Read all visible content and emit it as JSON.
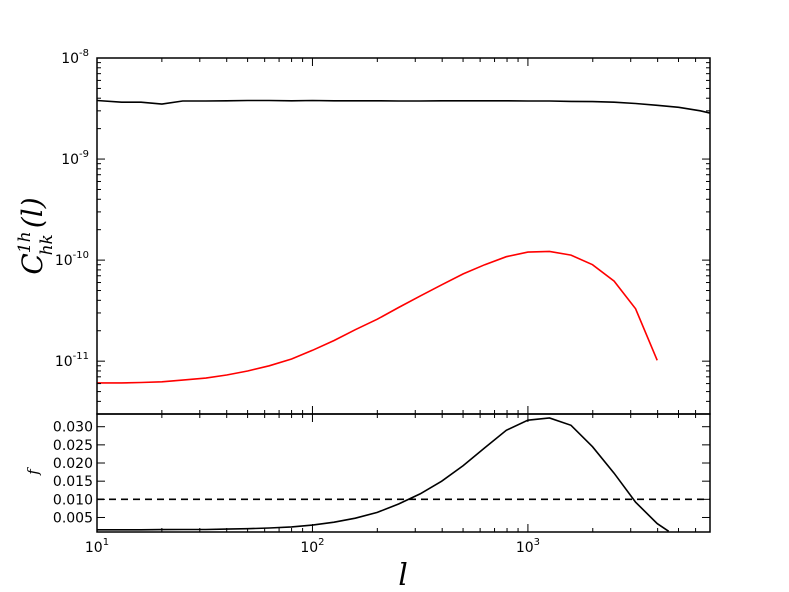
{
  "chart_data": [
    {
      "type": "line",
      "title": "",
      "xlabel": "",
      "ylabel": "C^{1h}_{hk}(l)",
      "ylabel_parts": {
        "base": "C",
        "sup": "1h",
        "sub": "hk",
        "arg": "(l)"
      },
      "xscale": "log",
      "yscale": "log",
      "xlim": [
        10,
        7000
      ],
      "ylim": [
        3e-12,
        1e-08
      ],
      "grid": false,
      "legend": "none",
      "y_ticks": [
        {
          "value": 1e-08,
          "mantissa": "10",
          "exp": "-8"
        },
        {
          "value": 1e-09,
          "mantissa": "10",
          "exp": "-9"
        },
        {
          "value": 1e-10,
          "mantissa": "10",
          "exp": "-10"
        },
        {
          "value": 1e-11,
          "mantissa": "10",
          "exp": "-11"
        }
      ],
      "series": [
        {
          "color": "#000000",
          "x": [
            10,
            13,
            16,
            20,
            25,
            32,
            40,
            50,
            63,
            80,
            100,
            126,
            158,
            200,
            251,
            316,
            398,
            501,
            631,
            794,
            1000,
            1259,
            1585,
            1995,
            2512,
            3162,
            3981,
            5012,
            6310,
            7000
          ],
          "y": [
            3.8e-09,
            3.65e-09,
            3.65e-09,
            3.5e-09,
            3.75e-09,
            3.75e-09,
            3.77e-09,
            3.8e-09,
            3.8e-09,
            3.77e-09,
            3.8e-09,
            3.77e-09,
            3.77e-09,
            3.77e-09,
            3.75e-09,
            3.75e-09,
            3.77e-09,
            3.77e-09,
            3.77e-09,
            3.77e-09,
            3.75e-09,
            3.75e-09,
            3.72e-09,
            3.7e-09,
            3.65e-09,
            3.55e-09,
            3.4e-09,
            3.25e-09,
            3e-09,
            2.85e-09
          ]
        },
        {
          "color": "#ff0000",
          "x": [
            10,
            13,
            16,
            20,
            25,
            32,
            40,
            50,
            63,
            80,
            100,
            126,
            158,
            200,
            251,
            316,
            398,
            501,
            631,
            794,
            1000,
            1259,
            1585,
            1995,
            2512,
            3162,
            3981
          ],
          "y": [
            6.1e-12,
            6.1e-12,
            6.15e-12,
            6.25e-12,
            6.5e-12,
            6.8e-12,
            7.3e-12,
            8e-12,
            9e-12,
            1.05e-11,
            1.28e-11,
            1.6e-11,
            2.05e-11,
            2.6e-11,
            3.4e-11,
            4.4e-11,
            5.7e-11,
            7.3e-11,
            9e-11,
            1.08e-10,
            1.2e-10,
            1.22e-10,
            1.12e-10,
            9e-11,
            6.2e-11,
            3.3e-11,
            1.02e-11
          ]
        }
      ]
    },
    {
      "type": "line",
      "title": "",
      "xlabel": "l",
      "ylabel": "f",
      "xscale": "log",
      "yscale": "linear",
      "xlim": [
        10,
        7000
      ],
      "ylim": [
        0.001,
        0.0335
      ],
      "grid": false,
      "legend": "none",
      "x_ticks": [
        {
          "value": 10,
          "mantissa": "10",
          "exp": "1"
        },
        {
          "value": 100,
          "mantissa": "10",
          "exp": "2"
        },
        {
          "value": 1000,
          "mantissa": "10",
          "exp": "3"
        }
      ],
      "y_ticks": [
        {
          "value": 0.005,
          "label": "0.005"
        },
        {
          "value": 0.01,
          "label": "0.010"
        },
        {
          "value": 0.015,
          "label": "0.015"
        },
        {
          "value": 0.02,
          "label": "0.020"
        },
        {
          "value": 0.025,
          "label": "0.025"
        },
        {
          "value": 0.03,
          "label": "0.030"
        }
      ],
      "series": [
        {
          "color": "#000000",
          "style": "solid",
          "x": [
            10,
            13,
            16,
            20,
            25,
            32,
            40,
            50,
            63,
            80,
            100,
            126,
            158,
            200,
            251,
            316,
            398,
            501,
            631,
            794,
            1000,
            1259,
            1585,
            1995,
            2512,
            3162,
            3981,
            4500
          ],
          "y": [
            0.0016,
            0.0016,
            0.0016,
            0.00165,
            0.0017,
            0.0017,
            0.0018,
            0.0019,
            0.0021,
            0.0024,
            0.0029,
            0.0037,
            0.0048,
            0.0064,
            0.0087,
            0.0115,
            0.015,
            0.0193,
            0.0242,
            0.029,
            0.0318,
            0.0324,
            0.0304,
            0.0245,
            0.0172,
            0.0092,
            0.0033,
            0.0012
          ]
        },
        {
          "color": "#000000",
          "style": "dashed",
          "x": [
            10,
            7000
          ],
          "y": [
            0.01,
            0.01
          ]
        }
      ]
    }
  ]
}
